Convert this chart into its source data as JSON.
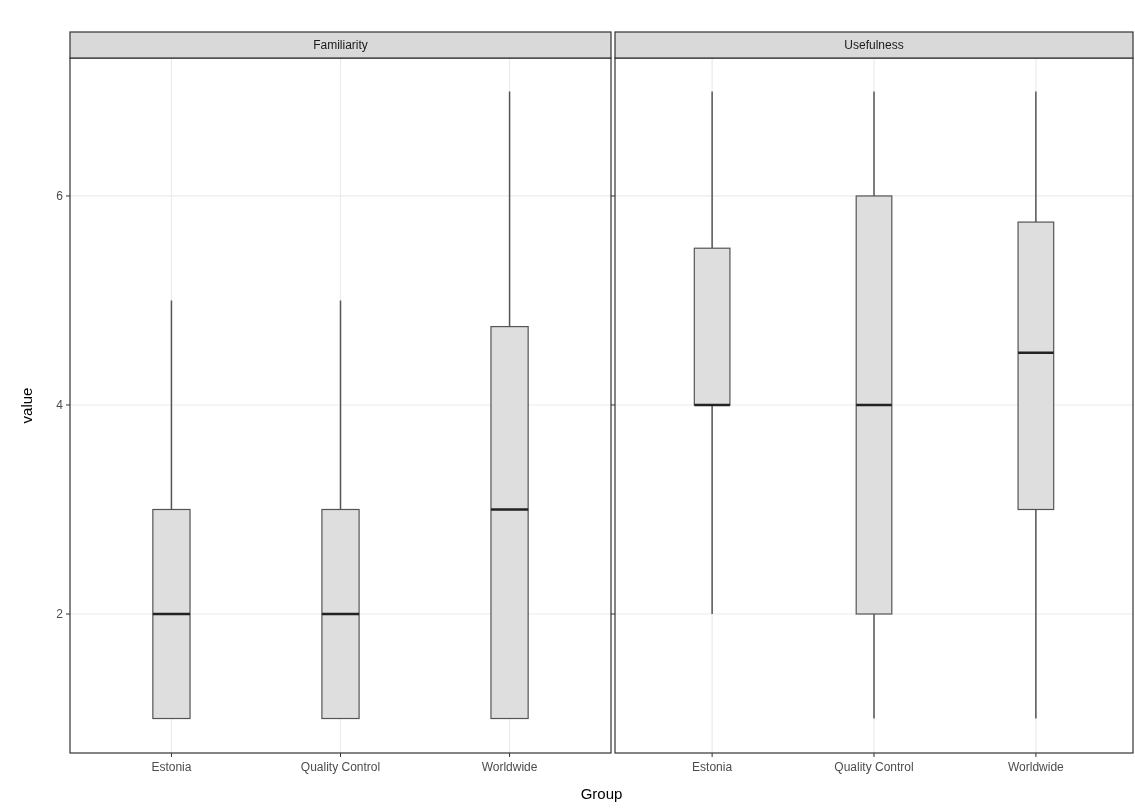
{
  "chart_data": [
    {
      "type": "box",
      "title": "Familiarity",
      "xlabel": "Group",
      "ylabel": "value",
      "categories": [
        "Estonia",
        "Quality Control",
        "Worldwide"
      ],
      "boxes": [
        {
          "low": 1,
          "q1": 1,
          "median": 2,
          "q3": 3,
          "high": 5
        },
        {
          "low": 1,
          "q1": 1,
          "median": 2,
          "q3": 3,
          "high": 5
        },
        {
          "low": 1,
          "q1": 1,
          "median": 3,
          "q3": 4.75,
          "high": 7
        }
      ],
      "ylim": [
        0.67,
        7.32
      ],
      "yticks": [
        2,
        4,
        6
      ],
      "grid": true,
      "color": "#dedede"
    },
    {
      "type": "box",
      "title": "Usefulness",
      "categories": [
        "Estonia",
        "Quality Control",
        "Worldwide"
      ],
      "boxes": [
        {
          "low": 2,
          "q1": 4,
          "median": 4,
          "q3": 5.5,
          "high": 7
        },
        {
          "low": 1,
          "q1": 2,
          "median": 4,
          "q3": 6,
          "high": 7
        },
        {
          "low": 1,
          "q1": 3,
          "median": 4.5,
          "q3": 5.75,
          "high": 7
        }
      ],
      "ylim": [
        0.67,
        7.32
      ],
      "yticks": [
        2,
        4,
        6
      ],
      "grid": true,
      "color": "#dedede",
      "tick_labels": "x"
    }
  ]
}
